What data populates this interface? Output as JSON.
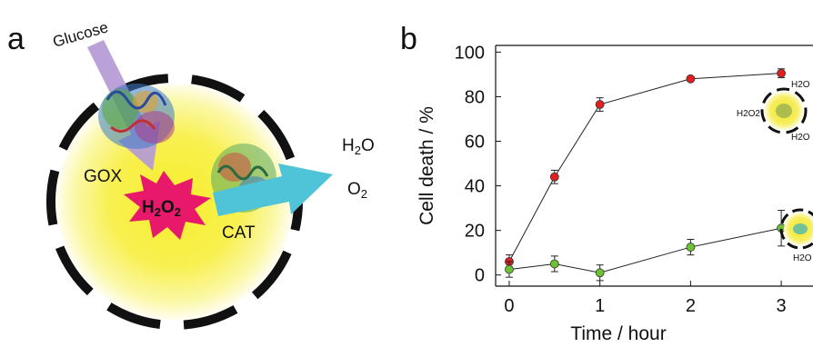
{
  "panel_a": {
    "label": "a",
    "glucose": "Glucose",
    "gox": "GOX",
    "cat": "CAT",
    "h2o2": "H2O2",
    "products": [
      "H2O",
      "O2"
    ]
  },
  "panel_b_label": "b",
  "chart_data": {
    "type": "scatter",
    "xlabel": "Time / hour",
    "ylabel": "Cell death / %",
    "xlim": [
      -0.15,
      3.35
    ],
    "ylim": [
      -5,
      103
    ],
    "x_ticks": [
      0,
      1,
      2,
      3
    ],
    "y_ticks": [
      0,
      20,
      40,
      60,
      80,
      100
    ],
    "grid": false,
    "series": [
      {
        "color": "#e02020",
        "points": [
          {
            "x": 0,
            "y": 6,
            "err": 3
          },
          {
            "x": 0.5,
            "y": 44,
            "err": 3
          },
          {
            "x": 1,
            "y": 76.5,
            "err": 3
          },
          {
            "x": 2,
            "y": 88,
            "err": 1
          },
          {
            "x": 3,
            "y": 90.5,
            "err": 2
          }
        ]
      },
      {
        "color": "#6cc234",
        "points": [
          {
            "x": 0,
            "y": 2.5,
            "err": 3.5
          },
          {
            "x": 0.5,
            "y": 5,
            "err": 3.5
          },
          {
            "x": 1,
            "y": 1,
            "err": 3.5
          },
          {
            "x": 2,
            "y": 12.5,
            "err": 3.5
          },
          {
            "x": 3,
            "y": 21,
            "err": 8
          }
        ]
      }
    ],
    "insets": [
      {
        "labels": [
          "H2O",
          "H2O2",
          "H2O"
        ]
      },
      {
        "labels": [
          "H2O"
        ]
      }
    ]
  }
}
